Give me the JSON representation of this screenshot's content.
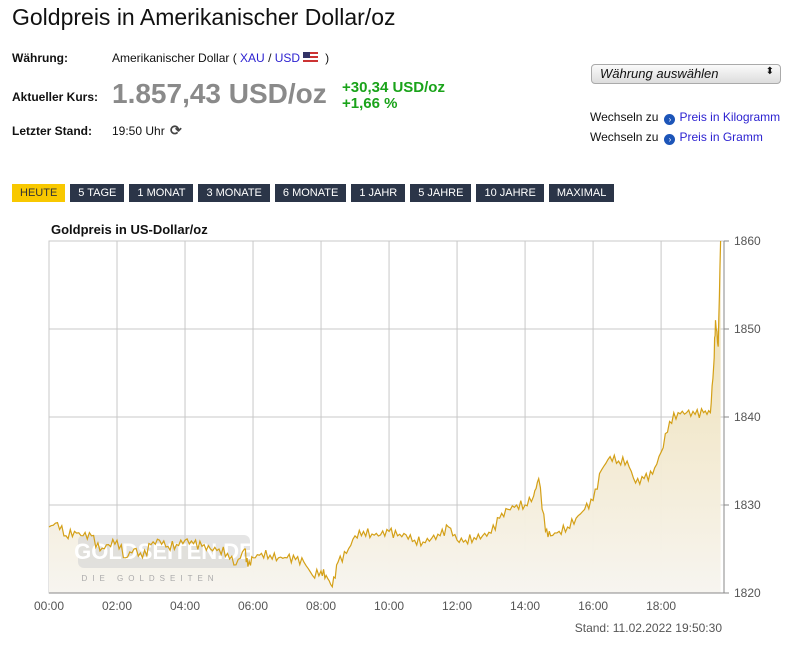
{
  "title": "Goldpreis in Amerikanischer Dollar/oz",
  "info": {
    "currency_label": "Währung:",
    "currency_value": "Amerikanischer Dollar (",
    "xau": "XAU",
    "slash": "/",
    "usd": "USD",
    "close": ")",
    "rate_label": "Aktueller Kurs:",
    "price": "1.857,43 USD/oz",
    "change_abs": "+30,34 USD/oz",
    "change_pct": "+1,66 %",
    "last_label": "Letzter Stand:",
    "last_value": "19:50 Uhr"
  },
  "select": {
    "label": "Währung auswählen"
  },
  "switch": [
    {
      "prefix": "Wechseln zu",
      "link": "Preis in Kilogramm"
    },
    {
      "prefix": "Wechseln zu",
      "link": "Preis in Gramm"
    }
  ],
  "tabs": [
    {
      "label": "HEUTE",
      "active": true
    },
    {
      "label": "5 TAGE"
    },
    {
      "label": "1 MONAT"
    },
    {
      "label": "3 MONATE"
    },
    {
      "label": "6 MONATE"
    },
    {
      "label": "1 JAHR"
    },
    {
      "label": "5 JAHRE"
    },
    {
      "label": "10 JAHRE"
    },
    {
      "label": "MAXIMAL"
    }
  ],
  "colors": {
    "line": "#d4a017",
    "active_tab": "#f8c800",
    "tab": "#2b3548",
    "up": "#1aa31a"
  },
  "chart_data": {
    "type": "area",
    "title": "Goldpreis in US-Dollar/oz",
    "watermark": "GOLDSEITEN.DE",
    "watermark_sub": "DIE GOLDSEITEN",
    "footer": "Stand: 11.02.2022 19:50:30",
    "xlim": [
      0,
      19.85
    ],
    "ylim": [
      1820,
      1860
    ],
    "x_ticks": [
      "00:00",
      "02:00",
      "04:00",
      "06:00",
      "08:00",
      "10:00",
      "12:00",
      "14:00",
      "16:00",
      "18:00"
    ],
    "y_ticks": [
      1820,
      1830,
      1840,
      1850,
      1860
    ],
    "grid": true,
    "x_hours": [
      0,
      0.25,
      0.5,
      0.75,
      1,
      1.25,
      1.5,
      1.75,
      2,
      2.25,
      2.5,
      2.75,
      3,
      3.25,
      3.5,
      3.75,
      4,
      4.25,
      4.5,
      4.75,
      5,
      5.25,
      5.5,
      5.75,
      5.85,
      6,
      6.25,
      6.5,
      6.75,
      7,
      7.25,
      7.5,
      7.75,
      8,
      8.15,
      8.33,
      8.5,
      8.75,
      9,
      9.25,
      9.5,
      9.75,
      10,
      10.25,
      10.5,
      10.75,
      11,
      11.25,
      11.5,
      11.75,
      12,
      12.25,
      12.5,
      12.75,
      13,
      13.25,
      13.5,
      13.75,
      14,
      14.25,
      14.4,
      14.6,
      14.75,
      15,
      15.25,
      15.5,
      15.75,
      16,
      16.25,
      16.5,
      16.75,
      17,
      17.25,
      17.5,
      17.75,
      18,
      18.25,
      18.5,
      18.75,
      19,
      19.25,
      19.45,
      19.55,
      19.6,
      19.68,
      19.75
    ],
    "y": [
      1827.5,
      1828,
      1826.5,
      1827,
      1826.5,
      1826.5,
      1824.8,
      1825.5,
      1826,
      1824,
      1825,
      1824,
      1825.5,
      1826,
      1825.3,
      1825.5,
      1826,
      1825.6,
      1825.3,
      1825,
      1825,
      1824.5,
      1823.2,
      1825,
      1823,
      1824,
      1824.5,
      1824.3,
      1824,
      1824,
      1823.8,
      1823.5,
      1822,
      1822.5,
      1822,
      1820.7,
      1823.5,
      1824.5,
      1826.5,
      1827,
      1826.7,
      1826.6,
      1827,
      1826.5,
      1826.6,
      1826,
      1825.8,
      1826.2,
      1826.5,
      1827.5,
      1826,
      1826,
      1826.3,
      1826.5,
      1826.8,
      1828.5,
      1829.5,
      1830,
      1830,
      1831,
      1833,
      1827,
      1826.5,
      1827,
      1827.5,
      1828.5,
      1829.5,
      1830.5,
      1834,
      1835.5,
      1835,
      1835,
      1832.5,
      1833,
      1833.5,
      1836,
      1839.5,
      1840.5,
      1840.5,
      1840.3,
      1840.5,
      1840.5,
      1846,
      1851,
      1848,
      1860
    ]
  }
}
